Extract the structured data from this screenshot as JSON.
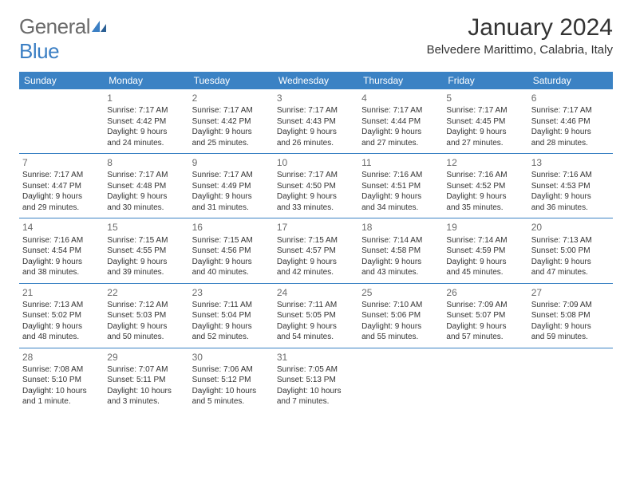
{
  "logo": {
    "general": "General",
    "blue": "Blue"
  },
  "title": "January 2024",
  "location": "Belvedere Marittimo, Calabria, Italy",
  "colors": {
    "header_bg": "#3b82c4",
    "header_text": "#ffffff",
    "row_border": "#3b82c4",
    "daynum": "#6b6b6b",
    "body_text": "#333333",
    "logo_gray": "#6b6b6b",
    "logo_blue": "#3b7fc4"
  },
  "weekdays": [
    "Sunday",
    "Monday",
    "Tuesday",
    "Wednesday",
    "Thursday",
    "Friday",
    "Saturday"
  ],
  "weeks": [
    [
      null,
      {
        "n": "1",
        "sr": "Sunrise: 7:17 AM",
        "ss": "Sunset: 4:42 PM",
        "d1": "Daylight: 9 hours",
        "d2": "and 24 minutes."
      },
      {
        "n": "2",
        "sr": "Sunrise: 7:17 AM",
        "ss": "Sunset: 4:42 PM",
        "d1": "Daylight: 9 hours",
        "d2": "and 25 minutes."
      },
      {
        "n": "3",
        "sr": "Sunrise: 7:17 AM",
        "ss": "Sunset: 4:43 PM",
        "d1": "Daylight: 9 hours",
        "d2": "and 26 minutes."
      },
      {
        "n": "4",
        "sr": "Sunrise: 7:17 AM",
        "ss": "Sunset: 4:44 PM",
        "d1": "Daylight: 9 hours",
        "d2": "and 27 minutes."
      },
      {
        "n": "5",
        "sr": "Sunrise: 7:17 AM",
        "ss": "Sunset: 4:45 PM",
        "d1": "Daylight: 9 hours",
        "d2": "and 27 minutes."
      },
      {
        "n": "6",
        "sr": "Sunrise: 7:17 AM",
        "ss": "Sunset: 4:46 PM",
        "d1": "Daylight: 9 hours",
        "d2": "and 28 minutes."
      }
    ],
    [
      {
        "n": "7",
        "sr": "Sunrise: 7:17 AM",
        "ss": "Sunset: 4:47 PM",
        "d1": "Daylight: 9 hours",
        "d2": "and 29 minutes."
      },
      {
        "n": "8",
        "sr": "Sunrise: 7:17 AM",
        "ss": "Sunset: 4:48 PM",
        "d1": "Daylight: 9 hours",
        "d2": "and 30 minutes."
      },
      {
        "n": "9",
        "sr": "Sunrise: 7:17 AM",
        "ss": "Sunset: 4:49 PM",
        "d1": "Daylight: 9 hours",
        "d2": "and 31 minutes."
      },
      {
        "n": "10",
        "sr": "Sunrise: 7:17 AM",
        "ss": "Sunset: 4:50 PM",
        "d1": "Daylight: 9 hours",
        "d2": "and 33 minutes."
      },
      {
        "n": "11",
        "sr": "Sunrise: 7:16 AM",
        "ss": "Sunset: 4:51 PM",
        "d1": "Daylight: 9 hours",
        "d2": "and 34 minutes."
      },
      {
        "n": "12",
        "sr": "Sunrise: 7:16 AM",
        "ss": "Sunset: 4:52 PM",
        "d1": "Daylight: 9 hours",
        "d2": "and 35 minutes."
      },
      {
        "n": "13",
        "sr": "Sunrise: 7:16 AM",
        "ss": "Sunset: 4:53 PM",
        "d1": "Daylight: 9 hours",
        "d2": "and 36 minutes."
      }
    ],
    [
      {
        "n": "14",
        "sr": "Sunrise: 7:16 AM",
        "ss": "Sunset: 4:54 PM",
        "d1": "Daylight: 9 hours",
        "d2": "and 38 minutes."
      },
      {
        "n": "15",
        "sr": "Sunrise: 7:15 AM",
        "ss": "Sunset: 4:55 PM",
        "d1": "Daylight: 9 hours",
        "d2": "and 39 minutes."
      },
      {
        "n": "16",
        "sr": "Sunrise: 7:15 AM",
        "ss": "Sunset: 4:56 PM",
        "d1": "Daylight: 9 hours",
        "d2": "and 40 minutes."
      },
      {
        "n": "17",
        "sr": "Sunrise: 7:15 AM",
        "ss": "Sunset: 4:57 PM",
        "d1": "Daylight: 9 hours",
        "d2": "and 42 minutes."
      },
      {
        "n": "18",
        "sr": "Sunrise: 7:14 AM",
        "ss": "Sunset: 4:58 PM",
        "d1": "Daylight: 9 hours",
        "d2": "and 43 minutes."
      },
      {
        "n": "19",
        "sr": "Sunrise: 7:14 AM",
        "ss": "Sunset: 4:59 PM",
        "d1": "Daylight: 9 hours",
        "d2": "and 45 minutes."
      },
      {
        "n": "20",
        "sr": "Sunrise: 7:13 AM",
        "ss": "Sunset: 5:00 PM",
        "d1": "Daylight: 9 hours",
        "d2": "and 47 minutes."
      }
    ],
    [
      {
        "n": "21",
        "sr": "Sunrise: 7:13 AM",
        "ss": "Sunset: 5:02 PM",
        "d1": "Daylight: 9 hours",
        "d2": "and 48 minutes."
      },
      {
        "n": "22",
        "sr": "Sunrise: 7:12 AM",
        "ss": "Sunset: 5:03 PM",
        "d1": "Daylight: 9 hours",
        "d2": "and 50 minutes."
      },
      {
        "n": "23",
        "sr": "Sunrise: 7:11 AM",
        "ss": "Sunset: 5:04 PM",
        "d1": "Daylight: 9 hours",
        "d2": "and 52 minutes."
      },
      {
        "n": "24",
        "sr": "Sunrise: 7:11 AM",
        "ss": "Sunset: 5:05 PM",
        "d1": "Daylight: 9 hours",
        "d2": "and 54 minutes."
      },
      {
        "n": "25",
        "sr": "Sunrise: 7:10 AM",
        "ss": "Sunset: 5:06 PM",
        "d1": "Daylight: 9 hours",
        "d2": "and 55 minutes."
      },
      {
        "n": "26",
        "sr": "Sunrise: 7:09 AM",
        "ss": "Sunset: 5:07 PM",
        "d1": "Daylight: 9 hours",
        "d2": "and 57 minutes."
      },
      {
        "n": "27",
        "sr": "Sunrise: 7:09 AM",
        "ss": "Sunset: 5:08 PM",
        "d1": "Daylight: 9 hours",
        "d2": "and 59 minutes."
      }
    ],
    [
      {
        "n": "28",
        "sr": "Sunrise: 7:08 AM",
        "ss": "Sunset: 5:10 PM",
        "d1": "Daylight: 10 hours",
        "d2": "and 1 minute."
      },
      {
        "n": "29",
        "sr": "Sunrise: 7:07 AM",
        "ss": "Sunset: 5:11 PM",
        "d1": "Daylight: 10 hours",
        "d2": "and 3 minutes."
      },
      {
        "n": "30",
        "sr": "Sunrise: 7:06 AM",
        "ss": "Sunset: 5:12 PM",
        "d1": "Daylight: 10 hours",
        "d2": "and 5 minutes."
      },
      {
        "n": "31",
        "sr": "Sunrise: 7:05 AM",
        "ss": "Sunset: 5:13 PM",
        "d1": "Daylight: 10 hours",
        "d2": "and 7 minutes."
      },
      null,
      null,
      null
    ]
  ]
}
